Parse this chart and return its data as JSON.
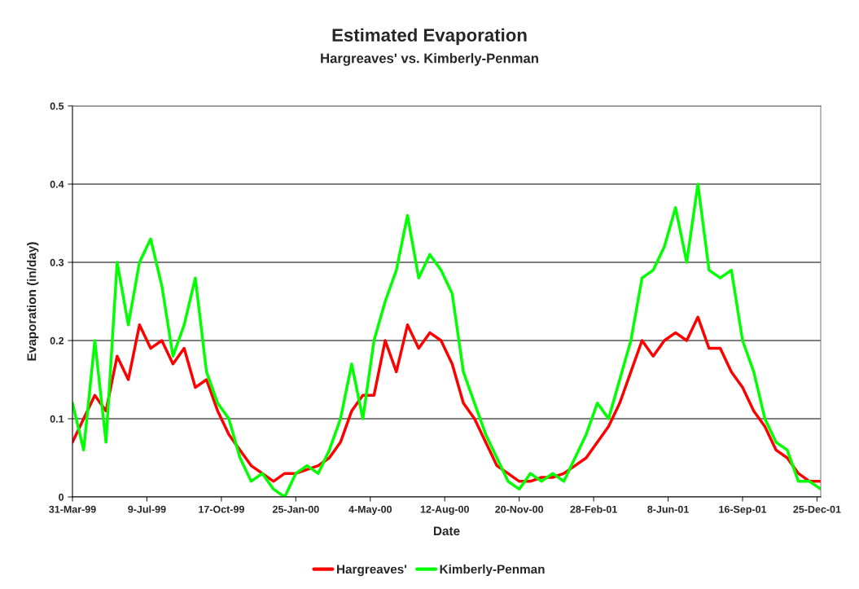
{
  "chart_data": {
    "type": "line",
    "title": "Estimated Evaporation",
    "subtitle": "Hargreaves' vs. Kimberly-Penman",
    "xlabel": "Date",
    "ylabel": "Evaporation (in/day)",
    "x": [
      "1999-03-31",
      "1999-04-15",
      "1999-04-30",
      "1999-05-15",
      "1999-05-30",
      "1999-06-14",
      "1999-06-29",
      "1999-07-14",
      "1999-07-29",
      "1999-08-13",
      "1999-08-28",
      "1999-09-12",
      "1999-09-27",
      "1999-10-12",
      "1999-10-27",
      "1999-11-11",
      "1999-11-26",
      "1999-12-11",
      "1999-12-26",
      "2000-01-10",
      "2000-01-25",
      "2000-02-09",
      "2000-02-24",
      "2000-03-10",
      "2000-03-25",
      "2000-04-09",
      "2000-04-24",
      "2000-05-09",
      "2000-05-24",
      "2000-06-08",
      "2000-06-23",
      "2000-07-08",
      "2000-07-23",
      "2000-08-07",
      "2000-08-22",
      "2000-09-06",
      "2000-09-21",
      "2000-10-06",
      "2000-10-21",
      "2000-11-05",
      "2000-11-20",
      "2000-12-05",
      "2000-12-20",
      "2001-01-04",
      "2001-01-19",
      "2001-02-03",
      "2001-02-18",
      "2001-03-05",
      "2001-03-20",
      "2001-04-04",
      "2001-04-19",
      "2001-05-04",
      "2001-05-19",
      "2001-06-03",
      "2001-06-18",
      "2001-07-03",
      "2001-07-18",
      "2001-08-02",
      "2001-08-17",
      "2001-09-01",
      "2001-09-16",
      "2001-10-01",
      "2001-10-16",
      "2001-10-31",
      "2001-11-15",
      "2001-11-30",
      "2001-12-15",
      "2001-12-30"
    ],
    "series": [
      {
        "name": "Hargreaves'",
        "color": "#ff0000",
        "values": [
          0.07,
          0.1,
          0.13,
          0.11,
          0.18,
          0.15,
          0.22,
          0.19,
          0.2,
          0.17,
          0.19,
          0.14,
          0.15,
          0.11,
          0.08,
          0.06,
          0.04,
          0.03,
          0.02,
          0.03,
          0.03,
          0.035,
          0.04,
          0.05,
          0.07,
          0.11,
          0.13,
          0.13,
          0.2,
          0.16,
          0.22,
          0.19,
          0.21,
          0.2,
          0.17,
          0.12,
          0.1,
          0.07,
          0.04,
          0.03,
          0.02,
          0.02,
          0.025,
          0.025,
          0.03,
          0.04,
          0.05,
          0.07,
          0.09,
          0.12,
          0.16,
          0.2,
          0.18,
          0.2,
          0.21,
          0.2,
          0.23,
          0.19,
          0.19,
          0.16,
          0.14,
          0.11,
          0.09,
          0.06,
          0.05,
          0.03,
          0.02,
          0.02
        ]
      },
      {
        "name": "Kimberly-Penman",
        "color": "#00ff00",
        "values": [
          0.12,
          0.06,
          0.2,
          0.07,
          0.3,
          0.22,
          0.3,
          0.33,
          0.27,
          0.18,
          0.22,
          0.28,
          0.16,
          0.12,
          0.1,
          0.05,
          0.02,
          0.03,
          0.01,
          0.0,
          0.03,
          0.04,
          0.03,
          0.06,
          0.1,
          0.17,
          0.1,
          0.2,
          0.25,
          0.29,
          0.36,
          0.28,
          0.31,
          0.29,
          0.26,
          0.16,
          0.12,
          0.08,
          0.05,
          0.02,
          0.01,
          0.03,
          0.02,
          0.03,
          0.02,
          0.05,
          0.08,
          0.12,
          0.1,
          0.15,
          0.2,
          0.28,
          0.29,
          0.32,
          0.37,
          0.3,
          0.4,
          0.29,
          0.28,
          0.29,
          0.2,
          0.16,
          0.1,
          0.07,
          0.06,
          0.02,
          0.02,
          0.01
        ]
      }
    ],
    "xlim": [
      "1999-03-31",
      "2001-12-30"
    ],
    "xticks": [
      {
        "value": "1999-03-31",
        "label": "31-Mar-99"
      },
      {
        "value": "1999-07-09",
        "label": "9-Jul-99"
      },
      {
        "value": "1999-10-17",
        "label": "17-Oct-99"
      },
      {
        "value": "2000-01-25",
        "label": "25-Jan-00"
      },
      {
        "value": "2000-05-04",
        "label": "4-May-00"
      },
      {
        "value": "2000-08-12",
        "label": "12-Aug-00"
      },
      {
        "value": "2000-11-20",
        "label": "20-Nov-00"
      },
      {
        "value": "2001-02-28",
        "label": "28-Feb-01"
      },
      {
        "value": "2001-06-08",
        "label": "8-Jun-01"
      },
      {
        "value": "2001-09-16",
        "label": "16-Sep-01"
      },
      {
        "value": "2001-12-25",
        "label": "25-Dec-01"
      }
    ],
    "ylim": [
      0,
      0.5
    ],
    "yticks": [
      0,
      0.1,
      0.2,
      0.3,
      0.4,
      0.5
    ],
    "grid": "y",
    "legend": "bottom",
    "marker": "none",
    "line_style": "solid"
  }
}
